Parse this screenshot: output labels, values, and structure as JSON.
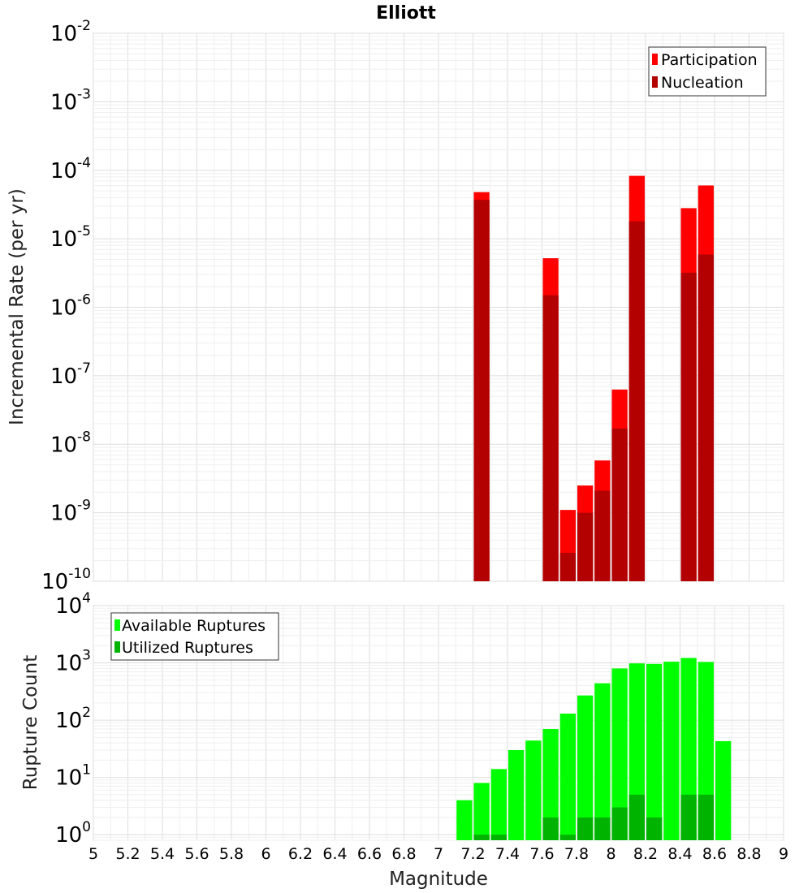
{
  "chart_data": [
    {
      "type": "bar",
      "title": "Elliott",
      "xlabel": "",
      "ylabel": "Incremental Rate (per yr)",
      "yscale": "log",
      "xlim": [
        5,
        9
      ],
      "ylim": [
        1e-10,
        0.01
      ],
      "legend_position": "top-right",
      "grid": true,
      "bin_width": 0.1,
      "series": [
        {
          "name": "Participation",
          "color": "#ff0000",
          "x": [
            7.25,
            7.65,
            7.75,
            7.85,
            7.95,
            8.05,
            8.15,
            8.45,
            8.55
          ],
          "values": [
            4.8e-05,
            5.2e-06,
            1.1e-09,
            2.5e-09,
            5.8e-09,
            6.3e-08,
            8.3e-05,
            2.8e-05,
            6e-05
          ]
        },
        {
          "name": "Nucleation",
          "color": "#b30000",
          "x": [
            7.25,
            7.65,
            7.75,
            7.85,
            7.95,
            8.05,
            8.15,
            8.45,
            8.55
          ],
          "values": [
            3.7e-05,
            1.5e-06,
            2.6e-10,
            1e-09,
            2.1e-09,
            1.7e-08,
            1.8e-05,
            3.2e-06,
            5.9e-06
          ]
        }
      ]
    },
    {
      "type": "bar",
      "title": "",
      "xlabel": "Magnitude",
      "ylabel": "Rupture Count",
      "yscale": "log",
      "xlim": [
        5,
        9
      ],
      "ylim": [
        0.8,
        10000
      ],
      "legend_position": "top-left",
      "grid": true,
      "bin_width": 0.1,
      "x_ticks": [
        "5",
        "5.2",
        "5.4",
        "5.6",
        "5.8",
        "6",
        "6.2",
        "6.4",
        "6.6",
        "6.8",
        "7",
        "7.2",
        "7.4",
        "7.6",
        "7.8",
        "8",
        "8.2",
        "8.4",
        "8.6",
        "8.8",
        "9"
      ],
      "series": [
        {
          "name": "Available Ruptures",
          "color": "#00ff00",
          "x": [
            7.15,
            7.25,
            7.35,
            7.45,
            7.55,
            7.65,
            7.75,
            7.85,
            7.95,
            8.05,
            8.15,
            8.25,
            8.35,
            8.45,
            8.55,
            8.65
          ],
          "values": [
            4,
            8,
            14,
            30,
            44,
            70,
            130,
            270,
            440,
            800,
            980,
            960,
            1050,
            1220,
            1040,
            43
          ]
        },
        {
          "name": "Utilized Ruptures",
          "color": "#00b300",
          "x": [
            7.25,
            7.35,
            7.65,
            7.75,
            7.85,
            7.95,
            8.05,
            8.15,
            8.25,
            8.45,
            8.55
          ],
          "values": [
            1,
            1,
            2,
            1,
            2,
            2,
            3,
            5,
            2,
            5,
            5
          ]
        }
      ]
    }
  ]
}
